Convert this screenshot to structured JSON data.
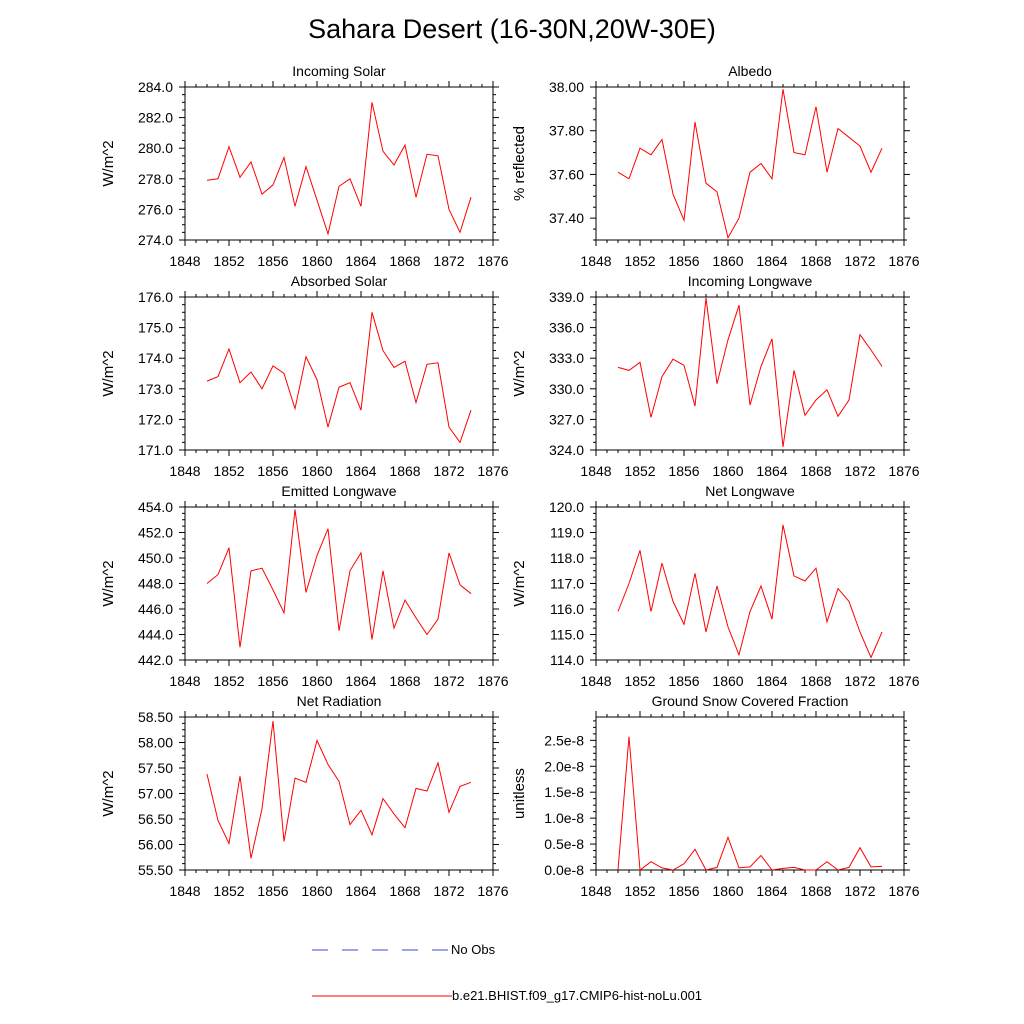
{
  "figure": {
    "title": "Sahara Desert (16-30N,20W-30E)",
    "legend": [
      {
        "label": "No Obs",
        "color": "#3a4bd6",
        "style": "dashed"
      },
      {
        "label": "b.e21.BHIST.f09_g17.CMIP6-hist-noLu.001",
        "color": "#ff0000",
        "style": "solid"
      }
    ],
    "series_color": "#ff0000"
  },
  "chart_data": [
    {
      "type": "line",
      "title": "Incoming Solar",
      "ylabel": "W/m^2",
      "xlim": [
        1848,
        1876
      ],
      "ylim": [
        274,
        284
      ],
      "xticks": [
        1848,
        1852,
        1856,
        1860,
        1864,
        1868,
        1872,
        1876
      ],
      "xtick_labels": [
        "1848",
        "1852",
        "1856",
        "1860",
        "1864",
        "1868",
        "1872",
        "1876"
      ],
      "yticks": [
        274,
        276,
        278,
        280,
        282,
        284
      ],
      "ytick_labels": [
        "274.0",
        "276.0",
        "278.0",
        "280.0",
        "282.0",
        "284.0"
      ],
      "series": [
        {
          "x": [
            1850,
            1851,
            1852,
            1853,
            1854,
            1855,
            1856,
            1857,
            1858,
            1859,
            1860,
            1861,
            1862,
            1863,
            1864,
            1865,
            1866,
            1867,
            1868,
            1869,
            1870,
            1871,
            1872,
            1873,
            1874
          ],
          "values": [
            277.9,
            278.0,
            280.1,
            278.1,
            279.1,
            277.0,
            277.6,
            279.4,
            276.2,
            278.8,
            276.6,
            274.4,
            277.5,
            278.0,
            276.2,
            283.0,
            279.8,
            278.9,
            280.2,
            276.8,
            279.6,
            279.5,
            276.0,
            274.5,
            276.8
          ]
        }
      ]
    },
    {
      "type": "line",
      "title": "Albedo",
      "ylabel": "% reflected",
      "xlim": [
        1848,
        1876
      ],
      "ylim": [
        37.3,
        38.0
      ],
      "xticks": [
        1848,
        1852,
        1856,
        1860,
        1864,
        1868,
        1872,
        1876
      ],
      "xtick_labels": [
        "1848",
        "1852",
        "1856",
        "1860",
        "1864",
        "1868",
        "1872",
        "1876"
      ],
      "yticks": [
        37.4,
        37.6,
        37.8,
        38.0
      ],
      "ytick_labels": [
        "37.40",
        "37.60",
        "37.80",
        "38.00"
      ],
      "series": [
        {
          "x": [
            1850,
            1851,
            1852,
            1853,
            1854,
            1855,
            1856,
            1857,
            1858,
            1859,
            1860,
            1861,
            1862,
            1863,
            1864,
            1865,
            1866,
            1867,
            1868,
            1869,
            1870,
            1871,
            1872,
            1873,
            1874
          ],
          "values": [
            37.61,
            37.58,
            37.72,
            37.69,
            37.76,
            37.51,
            37.39,
            37.84,
            37.56,
            37.52,
            37.31,
            37.4,
            37.61,
            37.65,
            37.58,
            37.99,
            37.7,
            37.69,
            37.91,
            37.61,
            37.81,
            37.77,
            37.73,
            37.61,
            37.72
          ]
        }
      ]
    },
    {
      "type": "line",
      "title": "Absorbed Solar",
      "ylabel": "W/m^2",
      "xlim": [
        1848,
        1876
      ],
      "ylim": [
        171,
        176
      ],
      "xticks": [
        1848,
        1852,
        1856,
        1860,
        1864,
        1868,
        1872,
        1876
      ],
      "xtick_labels": [
        "1848",
        "1852",
        "1856",
        "1860",
        "1864",
        "1868",
        "1872",
        "1876"
      ],
      "yticks": [
        171,
        172,
        173,
        174,
        175,
        176
      ],
      "ytick_labels": [
        "171.0",
        "172.0",
        "173.0",
        "174.0",
        "175.0",
        "176.0"
      ],
      "series": [
        {
          "x": [
            1850,
            1851,
            1852,
            1853,
            1854,
            1855,
            1856,
            1857,
            1858,
            1859,
            1860,
            1861,
            1862,
            1863,
            1864,
            1865,
            1866,
            1867,
            1868,
            1869,
            1870,
            1871,
            1872,
            1873,
            1874
          ],
          "values": [
            173.25,
            173.4,
            174.3,
            173.2,
            173.55,
            173.0,
            173.75,
            173.5,
            172.35,
            174.05,
            173.3,
            171.75,
            173.05,
            173.2,
            172.3,
            175.5,
            174.25,
            173.7,
            173.9,
            172.55,
            173.8,
            173.85,
            171.75,
            171.25,
            172.3
          ]
        }
      ]
    },
    {
      "type": "line",
      "title": "Incoming Longwave",
      "ylabel": "W/m^2",
      "xlim": [
        1848,
        1876
      ],
      "ylim": [
        324,
        339
      ],
      "xticks": [
        1848,
        1852,
        1856,
        1860,
        1864,
        1868,
        1872,
        1876
      ],
      "xtick_labels": [
        "1848",
        "1852",
        "1856",
        "1860",
        "1864",
        "1868",
        "1872",
        "1876"
      ],
      "yticks": [
        324,
        327,
        330,
        333,
        336,
        339
      ],
      "ytick_labels": [
        "324.0",
        "327.0",
        "330.0",
        "333.0",
        "336.0",
        "339.0"
      ],
      "series": [
        {
          "x": [
            1850,
            1851,
            1852,
            1853,
            1854,
            1855,
            1856,
            1857,
            1858,
            1859,
            1860,
            1861,
            1862,
            1863,
            1864,
            1865,
            1866,
            1867,
            1868,
            1869,
            1870,
            1871,
            1872,
            1873,
            1874
          ],
          "values": [
            332.1,
            331.8,
            332.6,
            327.2,
            331.2,
            332.9,
            332.3,
            328.3,
            338.9,
            330.5,
            334.8,
            338.2,
            328.4,
            332.2,
            334.9,
            324.3,
            331.8,
            327.4,
            328.9,
            329.9,
            327.3,
            328.9,
            335.3,
            333.8,
            332.2
          ]
        }
      ]
    },
    {
      "type": "line",
      "title": "Emitted Longwave",
      "ylabel": "W/m^2",
      "xlim": [
        1848,
        1876
      ],
      "ylim": [
        442,
        454
      ],
      "xticks": [
        1848,
        1852,
        1856,
        1860,
        1864,
        1868,
        1872,
        1876
      ],
      "xtick_labels": [
        "1848",
        "1852",
        "1856",
        "1860",
        "1864",
        "1868",
        "1872",
        "1876"
      ],
      "yticks": [
        442,
        444,
        446,
        448,
        450,
        452,
        454
      ],
      "ytick_labels": [
        "442.0",
        "444.0",
        "446.0",
        "448.0",
        "450.0",
        "452.0",
        "454.0"
      ],
      "series": [
        {
          "x": [
            1850,
            1851,
            1852,
            1853,
            1854,
            1855,
            1856,
            1857,
            1858,
            1859,
            1860,
            1861,
            1862,
            1863,
            1864,
            1865,
            1866,
            1867,
            1868,
            1869,
            1870,
            1871,
            1872,
            1873,
            1874
          ],
          "values": [
            448.0,
            448.7,
            450.8,
            443.0,
            449.0,
            449.2,
            447.5,
            445.7,
            453.8,
            447.3,
            450.2,
            452.3,
            444.3,
            449.0,
            450.4,
            443.6,
            449.0,
            444.5,
            446.7,
            445.3,
            444.0,
            445.2,
            450.4,
            447.9,
            447.2
          ]
        }
      ]
    },
    {
      "type": "line",
      "title": "Net Longwave",
      "ylabel": "W/m^2",
      "xlim": [
        1848,
        1876
      ],
      "ylim": [
        114,
        120
      ],
      "xticks": [
        1848,
        1852,
        1856,
        1860,
        1864,
        1868,
        1872,
        1876
      ],
      "xtick_labels": [
        "1848",
        "1852",
        "1856",
        "1860",
        "1864",
        "1868",
        "1872",
        "1876"
      ],
      "yticks": [
        114,
        115,
        116,
        117,
        118,
        119,
        120
      ],
      "ytick_labels": [
        "114.0",
        "115.0",
        "116.0",
        "117.0",
        "118.0",
        "119.0",
        "120.0"
      ],
      "series": [
        {
          "x": [
            1850,
            1851,
            1852,
            1853,
            1854,
            1855,
            1856,
            1857,
            1858,
            1859,
            1860,
            1861,
            1862,
            1863,
            1864,
            1865,
            1866,
            1867,
            1868,
            1869,
            1870,
            1871,
            1872,
            1873,
            1874
          ],
          "values": [
            115.9,
            117.0,
            118.3,
            115.9,
            117.8,
            116.3,
            115.4,
            117.4,
            115.1,
            116.9,
            115.3,
            114.2,
            115.9,
            116.9,
            115.6,
            119.3,
            117.3,
            117.1,
            117.6,
            115.5,
            116.8,
            116.3,
            115.1,
            114.1,
            115.1
          ]
        }
      ]
    },
    {
      "type": "line",
      "title": "Net Radiation",
      "ylabel": "W/m^2",
      "xlim": [
        1848,
        1876
      ],
      "ylim": [
        55.5,
        58.5
      ],
      "xticks": [
        1848,
        1852,
        1856,
        1860,
        1864,
        1868,
        1872,
        1876
      ],
      "xtick_labels": [
        "1848",
        "1852",
        "1856",
        "1860",
        "1864",
        "1868",
        "1872",
        "1876"
      ],
      "yticks": [
        55.5,
        56.0,
        56.5,
        57.0,
        57.5,
        58.0,
        58.5
      ],
      "ytick_labels": [
        "55.50",
        "56.00",
        "56.50",
        "57.00",
        "57.50",
        "58.00",
        "58.50"
      ],
      "series": [
        {
          "x": [
            1850,
            1851,
            1852,
            1853,
            1854,
            1855,
            1856,
            1857,
            1858,
            1859,
            1860,
            1861,
            1862,
            1863,
            1864,
            1865,
            1866,
            1867,
            1868,
            1869,
            1870,
            1871,
            1872,
            1873,
            1874
          ],
          "values": [
            57.38,
            56.47,
            56.02,
            57.34,
            55.73,
            56.7,
            58.42,
            56.06,
            57.3,
            57.22,
            58.04,
            57.57,
            57.24,
            56.39,
            56.67,
            56.19,
            56.9,
            56.6,
            56.33,
            57.1,
            57.05,
            57.6,
            56.63,
            57.14,
            57.22
          ]
        }
      ]
    },
    {
      "type": "line",
      "title": "Ground Snow Covered Fraction",
      "ylabel": "unitless",
      "xlim": [
        1848,
        1876
      ],
      "ylim": [
        0,
        2.95e-08
      ],
      "xticks": [
        1848,
        1852,
        1856,
        1860,
        1864,
        1868,
        1872,
        1876
      ],
      "xtick_labels": [
        "1848",
        "1852",
        "1856",
        "1860",
        "1864",
        "1868",
        "1872",
        "1876"
      ],
      "yticks": [
        0,
        5e-09,
        1e-08,
        1.5e-08,
        2e-08,
        2.5e-08
      ],
      "ytick_labels": [
        "0.0e-8",
        "0.5e-8",
        "1.0e-8",
        "1.5e-8",
        "2.0e-8",
        "2.5e-8"
      ],
      "series": [
        {
          "x": [
            1850,
            1851,
            1852,
            1853,
            1854,
            1855,
            1856,
            1857,
            1858,
            1859,
            1860,
            1861,
            1862,
            1863,
            1864,
            1865,
            1866,
            1867,
            1868,
            1869,
            1870,
            1871,
            1872,
            1873,
            1874
          ],
          "values": [
            0,
            2.57e-08,
            0,
            1.6e-09,
            4e-10,
            0,
            1.2e-09,
            4e-09,
            0,
            5e-10,
            6.3e-09,
            4e-10,
            6e-10,
            2.8e-09,
            0,
            3e-10,
            5e-10,
            0,
            0,
            1.6e-09,
            0,
            5e-10,
            4.3e-09,
            6e-10,
            7e-10
          ]
        }
      ]
    }
  ]
}
